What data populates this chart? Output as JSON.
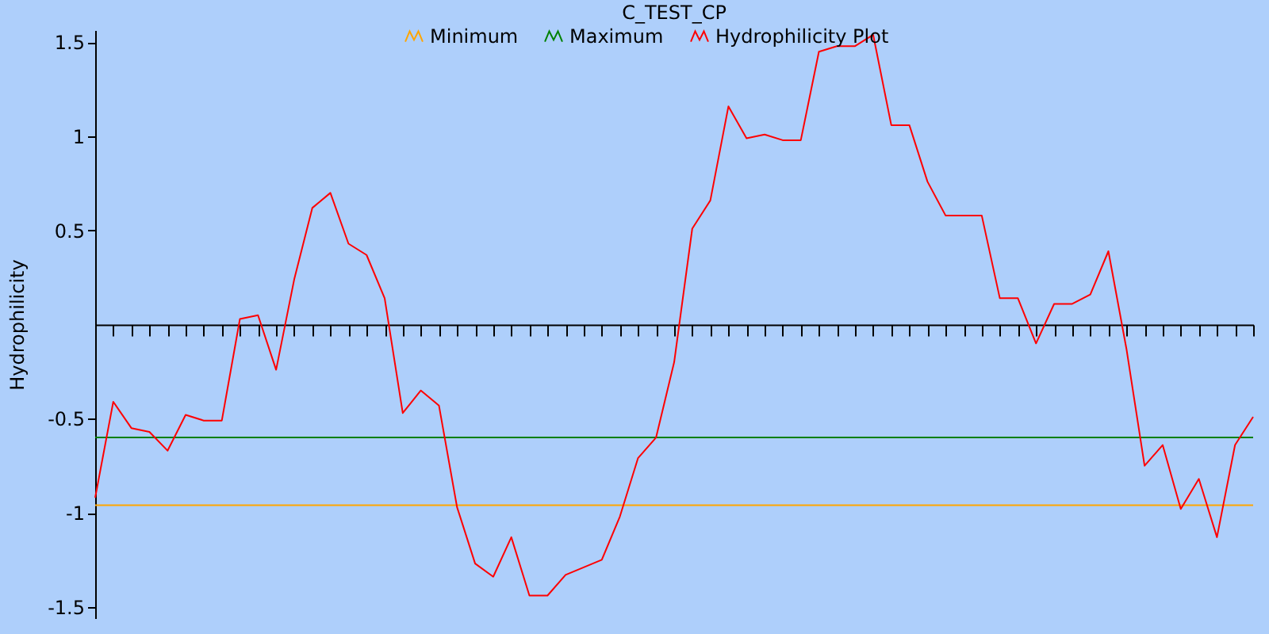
{
  "chart_data": {
    "type": "line",
    "title": "C_TEST_CP",
    "ylabel": "Hydrophilicity",
    "categories": [
      null,
      null,
      null,
      null,
      null,
      null,
      null,
      null,
      null,
      null,
      null,
      null,
      null,
      null,
      null,
      null,
      null,
      null,
      null,
      null,
      null,
      null,
      null,
      null,
      null,
      null,
      null,
      null,
      null,
      null,
      null,
      null,
      null,
      null,
      null,
      null,
      null,
      null,
      null,
      null,
      null,
      null,
      null,
      null,
      null,
      null,
      null,
      null,
      null,
      null,
      null,
      null,
      null,
      null,
      null,
      null,
      null,
      null,
      null,
      null,
      null,
      null,
      null,
      null,
      null
    ],
    "series": [
      {
        "name": "Minimum",
        "color": "#ffa500",
        "values": [
          -0.96,
          -0.96,
          -0.96,
          -0.96,
          -0.96,
          -0.96,
          -0.96,
          -0.96,
          -0.96,
          -0.96,
          -0.96,
          -0.96,
          -0.96,
          -0.96,
          -0.96,
          -0.96,
          -0.96,
          -0.96,
          -0.96,
          -0.96,
          -0.96,
          -0.96,
          -0.96,
          -0.96,
          -0.96,
          -0.96,
          -0.96,
          -0.96,
          -0.96,
          -0.96,
          -0.96,
          -0.96,
          -0.96,
          -0.96,
          -0.96,
          -0.96,
          -0.96,
          -0.96,
          -0.96,
          -0.96,
          -0.96,
          -0.96,
          -0.96,
          -0.96,
          -0.96,
          -0.96,
          -0.96,
          -0.96,
          -0.96,
          -0.96,
          -0.96,
          -0.96,
          -0.96,
          -0.96,
          -0.96,
          -0.96,
          -0.96,
          -0.96,
          -0.96,
          -0.96,
          -0.96,
          -0.96,
          -0.96,
          -0.96,
          -0.96
        ]
      },
      {
        "name": "Maximum",
        "color": "#008000",
        "values": [
          -0.6,
          -0.6,
          -0.6,
          -0.6,
          -0.6,
          -0.6,
          -0.6,
          -0.6,
          -0.6,
          -0.6,
          -0.6,
          -0.6,
          -0.6,
          -0.6,
          -0.6,
          -0.6,
          -0.6,
          -0.6,
          -0.6,
          -0.6,
          -0.6,
          -0.6,
          -0.6,
          -0.6,
          -0.6,
          -0.6,
          -0.6,
          -0.6,
          -0.6,
          -0.6,
          -0.6,
          -0.6,
          -0.6,
          -0.6,
          -0.6,
          -0.6,
          -0.6,
          -0.6,
          -0.6,
          -0.6,
          -0.6,
          -0.6,
          -0.6,
          -0.6,
          -0.6,
          -0.6,
          -0.6,
          -0.6,
          -0.6,
          -0.6,
          -0.6,
          -0.6,
          -0.6,
          -0.6,
          -0.6,
          -0.6,
          -0.6,
          -0.6,
          -0.6,
          -0.6,
          -0.6,
          -0.6,
          -0.6,
          -0.6,
          -0.6
        ]
      },
      {
        "name": "Hydrophilicity Plot",
        "color": "#ff0000",
        "values": [
          -0.92,
          -0.41,
          -0.55,
          -0.57,
          -0.67,
          -0.48,
          -0.51,
          -0.51,
          0.03,
          0.05,
          -0.24,
          0.24,
          0.62,
          0.7,
          0.43,
          0.37,
          0.14,
          -0.47,
          -0.35,
          -0.43,
          -0.97,
          -1.27,
          -1.34,
          -1.13,
          -1.44,
          -1.44,
          -1.33,
          -1.29,
          -1.25,
          -1.02,
          -0.71,
          -0.6,
          -0.2,
          0.51,
          0.66,
          1.16,
          0.99,
          1.01,
          0.98,
          0.98,
          1.45,
          1.48,
          1.48,
          1.54,
          1.06,
          1.06,
          0.76,
          0.58,
          0.58,
          0.58,
          0.14,
          0.14,
          -0.1,
          0.11,
          0.11,
          0.16,
          0.39,
          -0.13,
          -0.75,
          -0.64,
          -0.98,
          -0.82,
          -1.13,
          -0.64,
          -0.49
        ]
      }
    ],
    "ylim": [
      -1.56,
      1.565
    ],
    "yticks": [
      -1.5,
      -1,
      -0.5,
      0.5,
      1,
      1.5
    ],
    "grid": false,
    "legend": "top",
    "marker": "none",
    "line_style": "solid",
    "tick_labels": "y"
  }
}
